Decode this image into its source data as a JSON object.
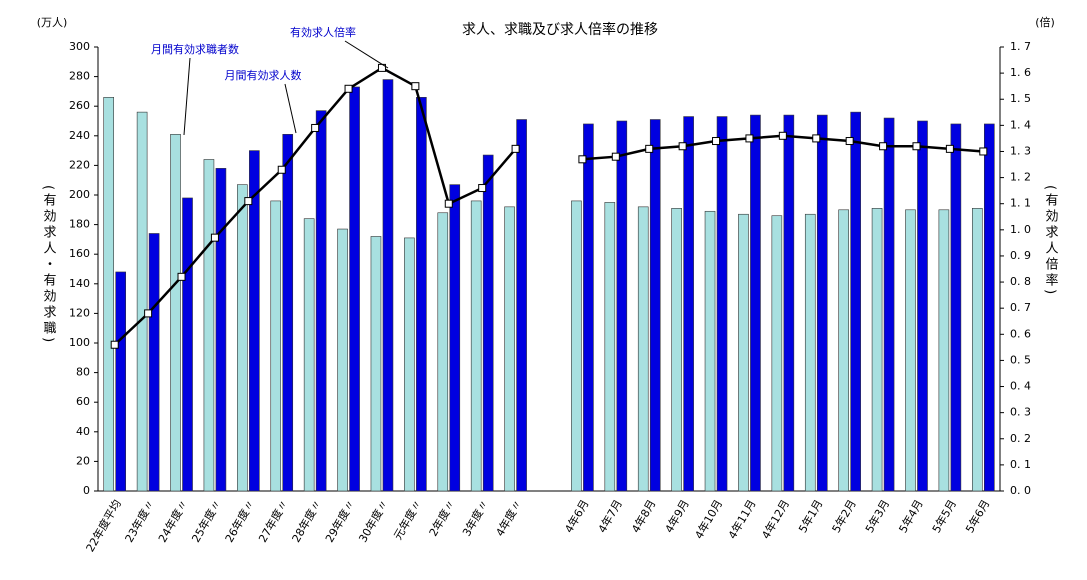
{
  "chart_data": {
    "type": "bar",
    "title": "求人、求職及び求人倍率の推移",
    "y_unit": "(万人)",
    "y2_unit": "(倍)",
    "ylabel": "(有効求人・有効求職)",
    "y2label": "(有効求人倍率)",
    "categories": [
      "22年度平均",
      "23年度〃",
      "24年度〃",
      "25年度〃",
      "26年度〃",
      "27年度〃",
      "28年度〃",
      "29年度〃",
      "30年度〃",
      "元年度〃",
      "2年度〃",
      "3年度〃",
      "4年度〃",
      null,
      "4年6月",
      "4年7月",
      "4年8月",
      "4年9月",
      "4年10月",
      "4年11月",
      "4年12月",
      "5年1月",
      "5年2月",
      "5年3月",
      "5年4月",
      "5年5月",
      "5年6月"
    ],
    "series": [
      {
        "name": "月間有効求職者数",
        "type": "bar",
        "color": "#a8e0e0",
        "values": [
          266,
          256,
          241,
          224,
          207,
          196,
          184,
          177,
          172,
          171,
          188,
          196,
          192,
          null,
          196,
          195,
          192,
          191,
          189,
          187,
          186,
          187,
          190,
          191,
          190,
          190,
          191
        ]
      },
      {
        "name": "月間有効求人数",
        "type": "bar",
        "color": "#0000e0",
        "values": [
          148,
          174,
          198,
          218,
          230,
          241,
          257,
          273,
          278,
          266,
          207,
          227,
          251,
          null,
          248,
          250,
          251,
          253,
          253,
          254,
          254,
          254,
          256,
          252,
          250,
          248,
          248
        ]
      },
      {
        "name": "有効求人倍率",
        "type": "line",
        "axis": "y2",
        "color": "#000000",
        "values": [
          0.56,
          0.68,
          0.82,
          0.97,
          1.11,
          1.23,
          1.39,
          1.54,
          1.62,
          1.55,
          1.1,
          1.16,
          1.31,
          null,
          1.27,
          1.28,
          1.31,
          1.32,
          1.34,
          1.35,
          1.36,
          1.35,
          1.34,
          1.32,
          1.32,
          1.31,
          1.3
        ]
      }
    ],
    "ylim": [
      0,
      300
    ],
    "yticks": [
      0,
      20,
      40,
      60,
      80,
      100,
      120,
      140,
      160,
      180,
      200,
      220,
      240,
      260,
      280,
      300
    ],
    "y2lim": [
      0,
      1.7
    ],
    "y2ticks": [
      {
        "value": 0,
        "label": "0. 0"
      },
      {
        "value": 0.1,
        "label": "0. 1"
      },
      {
        "value": 0.2,
        "label": "0. 2"
      },
      {
        "value": 0.3,
        "label": "0. 3"
      },
      {
        "value": 0.4,
        "label": "0. 4"
      },
      {
        "value": 0.5,
        "label": "0. 5"
      },
      {
        "value": 0.6,
        "label": "0. 6"
      },
      {
        "value": 0.7,
        "label": "0. 7"
      },
      {
        "value": 0.8,
        "label": "0. 8"
      },
      {
        "value": 0.9,
        "label": "0. 9"
      },
      {
        "value": 1.0,
        "label": "1. 0"
      },
      {
        "value": 1.1,
        "label": "1. 1"
      },
      {
        "value": 1.2,
        "label": "1. 2"
      },
      {
        "value": 1.3,
        "label": "1. 3"
      },
      {
        "value": 1.4,
        "label": "1. 4"
      },
      {
        "value": 1.5,
        "label": "1. 5"
      },
      {
        "value": 1.6,
        "label": "1. 6"
      },
      {
        "value": 1.7,
        "label": "1. 7"
      }
    ],
    "grid": false
  }
}
